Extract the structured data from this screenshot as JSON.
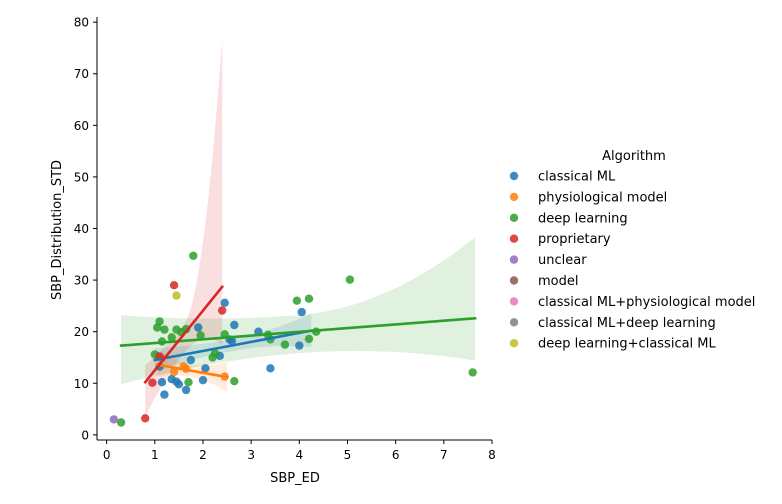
{
  "chart_data": {
    "type": "scatter",
    "title": "",
    "xlabel": "SBP_ED",
    "ylabel": "SBP_Distribution_STD",
    "xlim": [
      -0.2,
      8
    ],
    "ylim": [
      -1,
      81
    ],
    "x_ticks": [
      0,
      1,
      2,
      3,
      4,
      5,
      6,
      7,
      8
    ],
    "y_ticks": [
      0,
      10,
      20,
      30,
      40,
      50,
      60,
      70,
      80
    ],
    "grid": false,
    "legend": {
      "title": "Algorithm",
      "placement": "right",
      "entries": [
        {
          "label": "classical ML",
          "color": "#1f77b4"
        },
        {
          "label": "physiological model",
          "color": "#ff7f0e"
        },
        {
          "label": "deep learning",
          "color": "#2ca02c"
        },
        {
          "label": "proprietary",
          "color": "#d62728"
        },
        {
          "label": "unclear",
          "color": "#9467bd"
        },
        {
          "label": "model",
          "color": "#8c564b"
        },
        {
          "label": "classical ML+physiological model",
          "color": "#e377c2"
        },
        {
          "label": "classical ML+deep learning",
          "color": "#7f7f7f"
        },
        {
          "label": "deep learning+classical ML",
          "color": "#bcbd22"
        }
      ]
    },
    "series": [
      {
        "name": "classical ML",
        "color": "#1f77b4",
        "points": [
          [
            1.1,
            13.2
          ],
          [
            1.15,
            10.2
          ],
          [
            1.2,
            7.8
          ],
          [
            1.35,
            10.8
          ],
          [
            1.45,
            10.3
          ],
          [
            1.5,
            9.8
          ],
          [
            1.65,
            8.7
          ],
          [
            1.75,
            14.5
          ],
          [
            1.9,
            20.8
          ],
          [
            2.05,
            12.9
          ],
          [
            2.0,
            10.6
          ],
          [
            2.35,
            15.3
          ],
          [
            2.45,
            25.6
          ],
          [
            2.55,
            18.5
          ],
          [
            2.6,
            18.2
          ],
          [
            2.65,
            21.3
          ],
          [
            3.15,
            20.0
          ],
          [
            3.4,
            12.9
          ],
          [
            4.05,
            23.8
          ],
          [
            4.0,
            17.3
          ]
        ],
        "regression": {
          "x": [
            1.0,
            4.25
          ],
          "y": [
            14.5,
            20.2
          ],
          "ci_lower": [
            12.5,
            17.0
          ],
          "ci_upper": [
            16.8,
            23.5
          ]
        }
      },
      {
        "name": "physiological model",
        "color": "#ff7f0e",
        "points": [
          [
            1.15,
            14.8
          ],
          [
            1.4,
            12.2
          ],
          [
            1.6,
            13.3
          ],
          [
            1.65,
            12.8
          ],
          [
            2.45,
            11.3
          ]
        ],
        "regression": {
          "x": [
            1.05,
            2.5
          ],
          "y": [
            13.6,
            11.2
          ],
          "ci_lower": [
            11.4,
            8.3
          ],
          "ci_upper": [
            15.9,
            14.2
          ]
        }
      },
      {
        "name": "deep learning",
        "color": "#2ca02c",
        "points": [
          [
            0.3,
            2.4
          ],
          [
            1.0,
            15.6
          ],
          [
            1.05,
            20.8
          ],
          [
            1.1,
            22.0
          ],
          [
            1.15,
            18.1
          ],
          [
            1.2,
            20.4
          ],
          [
            1.35,
            18.9
          ],
          [
            1.45,
            20.4
          ],
          [
            1.55,
            19.9
          ],
          [
            1.65,
            20.5
          ],
          [
            1.7,
            10.2
          ],
          [
            1.8,
            34.7
          ],
          [
            1.95,
            19.3
          ],
          [
            2.2,
            15.0
          ],
          [
            2.25,
            15.8
          ],
          [
            2.45,
            19.5
          ],
          [
            2.65,
            10.4
          ],
          [
            3.35,
            19.4
          ],
          [
            3.4,
            18.5
          ],
          [
            3.7,
            17.5
          ],
          [
            3.95,
            26.0
          ],
          [
            4.2,
            26.4
          ],
          [
            4.2,
            18.6
          ],
          [
            4.35,
            20.0
          ],
          [
            5.05,
            30.1
          ],
          [
            7.6,
            12.1
          ]
        ],
        "regression": {
          "x": [
            0.3,
            7.65
          ],
          "y": [
            17.3,
            22.6
          ],
          "ci_lower": [
            9.8,
            14.4
          ],
          "ci_upper": [
            23.2,
            38.3
          ]
        }
      },
      {
        "name": "proprietary",
        "color": "#d62728",
        "points": [
          [
            0.8,
            3.2
          ],
          [
            0.95,
            10.1
          ],
          [
            1.1,
            15.2
          ],
          [
            1.4,
            29.0
          ],
          [
            2.4,
            24.1
          ]
        ],
        "regression": {
          "x": [
            0.8,
            2.4
          ],
          "y": [
            10.2,
            28.7
          ],
          "ci_lower": [
            3.5,
            17.5
          ],
          "ci_upper": [
            13.5,
            76.5
          ]
        }
      },
      {
        "name": "unclear",
        "color": "#9467bd",
        "points": [
          [
            0.15,
            3.0
          ]
        ]
      },
      {
        "name": "deep learning+classical ML",
        "color": "#bcbd22",
        "points": [
          [
            1.45,
            27.0
          ]
        ]
      }
    ]
  }
}
